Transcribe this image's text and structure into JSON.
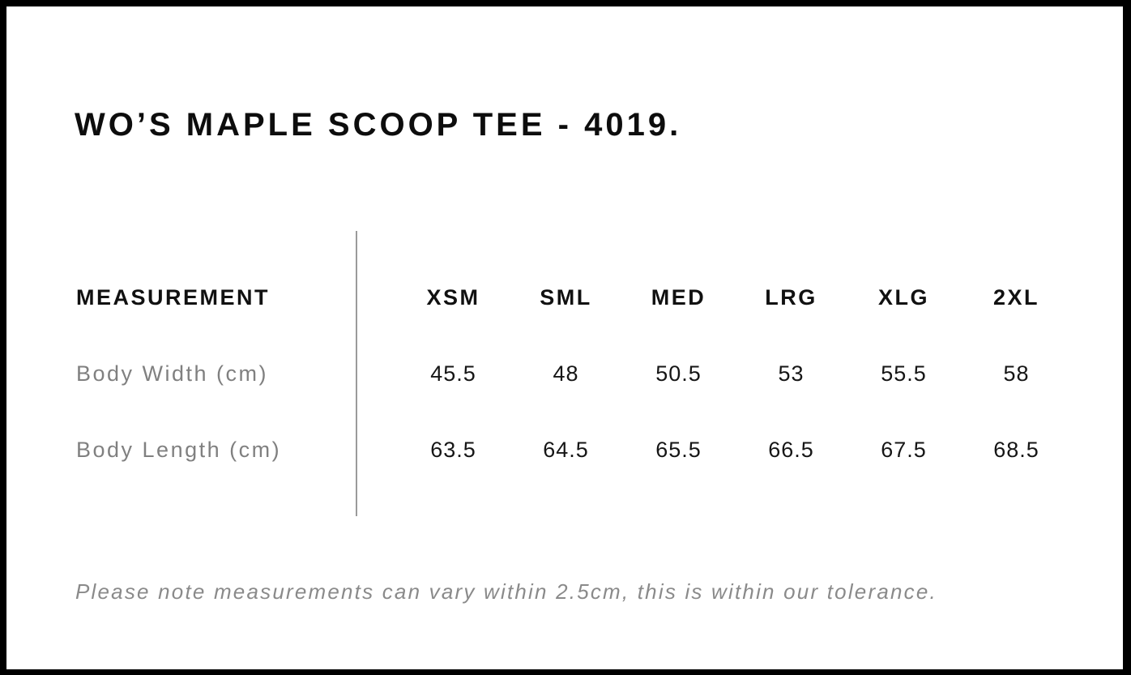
{
  "page": {
    "title": "WO’S MAPLE SCOOP TEE - 4019.",
    "note": "Please note measurements can vary within 2.5cm, this is within our tolerance."
  },
  "size_chart": {
    "measurement_header": "MEASUREMENT",
    "sizes": [
      "XSM",
      "SML",
      "MED",
      "LRG",
      "XLG",
      "2XL"
    ],
    "rows": [
      {
        "label": "Body Width (cm)",
        "values": [
          "45.5",
          "48",
          "50.5",
          "53",
          "55.5",
          "58"
        ]
      },
      {
        "label": "Body Length (cm)",
        "values": [
          "63.5",
          "64.5",
          "65.5",
          "66.5",
          "67.5",
          "68.5"
        ]
      }
    ]
  },
  "colors": {
    "border_black": "#000000",
    "title_black": "#0d0d0d",
    "header_black": "#111111",
    "value_black": "#161616",
    "label_gray": "#808080",
    "note_gray": "#8a8a8a",
    "divider_gray": "#9b9b9b",
    "background": "#ffffff"
  }
}
